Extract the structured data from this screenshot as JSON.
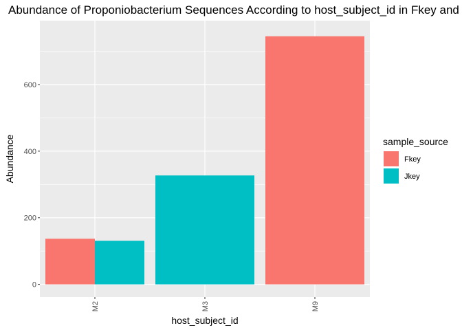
{
  "chart_data": {
    "type": "bar",
    "title": "Abundance of Proponiobacterium Sequences According to host_subject_id in Fkey and Jkey",
    "xlabel": "host_subject_id",
    "ylabel": "Abundance",
    "categories": [
      "M2",
      "M3",
      "M9"
    ],
    "series": [
      {
        "name": "Fkey",
        "color": "#F8766D",
        "values": [
          137,
          null,
          745
        ]
      },
      {
        "name": "Jkey",
        "color": "#00BFC4",
        "values": [
          131,
          327,
          null
        ]
      }
    ],
    "ylim": [
      -38,
      792
    ],
    "yticks": [
      0,
      200,
      400,
      600
    ],
    "grid": true,
    "legend": {
      "title": "sample_source",
      "position": "right"
    },
    "panel_background": "#EBEBEB"
  }
}
